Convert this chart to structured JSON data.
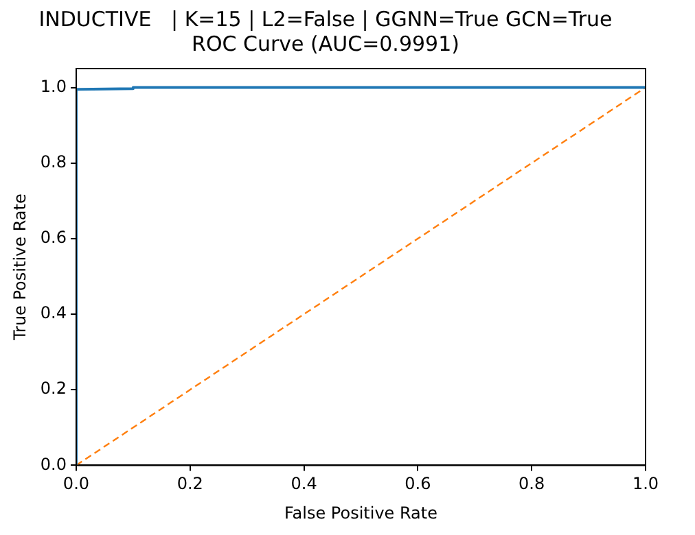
{
  "chart_data": {
    "type": "line",
    "title": "INDUCTIVE   | K=15 | L2=False | GGNN=True GCN=True",
    "subtitle": "ROC Curve (AUC=0.9991)",
    "xlabel": "False Positive Rate",
    "ylabel": "True Positive Rate",
    "series": [
      {
        "color": "#1f77b4",
        "line_style": "solid",
        "x": [
          0,
          0,
          0.005,
          0.1,
          0.1,
          1
        ],
        "values": [
          0,
          0.995,
          0.995,
          0.997,
          1,
          1
        ]
      },
      {
        "color": "#ff7f0e",
        "line_style": "dashed",
        "x": [
          0,
          1
        ],
        "values": [
          0,
          1
        ]
      }
    ],
    "xlim": [
      0,
      1
    ],
    "ylim": [
      0,
      1.05
    ],
    "xticks": [
      {
        "value": 0,
        "label": "0.0"
      },
      0.2,
      0.4,
      0.6,
      0.8,
      {
        "value": 1,
        "label": "1.0"
      }
    ],
    "yticks": [
      {
        "value": 0,
        "label": "0.0"
      },
      0.2,
      0.4,
      0.6,
      0.8,
      {
        "value": 1,
        "label": "1.0"
      }
    ],
    "grid": false,
    "legend": false,
    "marker": "none"
  }
}
